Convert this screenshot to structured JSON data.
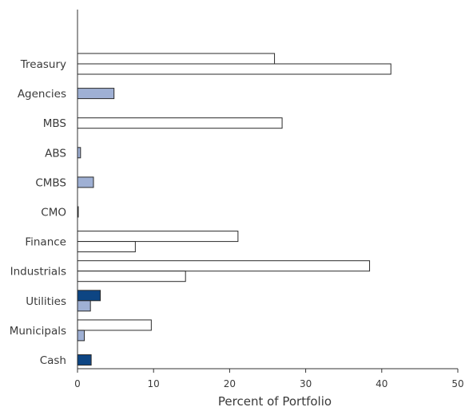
{
  "chart_data": {
    "type": "bar",
    "orientation": "horizontal",
    "categories": [
      "Treasury",
      "Agencies",
      "MBS",
      "ABS",
      "CMBS",
      "CMO",
      "Finance",
      "Industrials",
      "Utilities",
      "Municipals",
      "Cash"
    ],
    "bars": [
      {
        "category": "Treasury",
        "style": "outline",
        "value": 25.9
      },
      {
        "category": "Treasury",
        "style": "outline",
        "value": 41.2
      },
      {
        "category": "Agencies",
        "style": "light",
        "value": 4.8
      },
      {
        "category": "MBS",
        "style": "outline",
        "value": 26.9
      },
      {
        "category": "ABS",
        "style": "light",
        "value": 0.4
      },
      {
        "category": "CMBS",
        "style": "light",
        "value": 2.1
      },
      {
        "category": "CMO",
        "style": "light",
        "value": 0.1
      },
      {
        "category": "Finance",
        "style": "outline",
        "value": 21.1
      },
      {
        "category": "Finance",
        "style": "outline",
        "value": 7.6
      },
      {
        "category": "Industrials",
        "style": "outline",
        "value": 38.4
      },
      {
        "category": "Industrials",
        "style": "outline",
        "value": 14.2
      },
      {
        "category": "Utilities",
        "style": "dark",
        "value": 3.0
      },
      {
        "category": "Utilities",
        "style": "light",
        "value": 1.7
      },
      {
        "category": "Municipals",
        "style": "outline",
        "value": 9.7
      },
      {
        "category": "Municipals",
        "style": "light",
        "value": 0.9
      },
      {
        "category": "Cash",
        "style": "dark",
        "value": 1.8
      }
    ],
    "xlabel": "Percent of Portfolio",
    "xlim": [
      0,
      50
    ],
    "xticks": [
      "0",
      "10",
      "20",
      "30",
      "40",
      "50"
    ],
    "grid": false,
    "colors": {
      "outline": "#ffffff",
      "light": "#9fb0d4",
      "dark": "#0d4583",
      "stroke": "#2a2a2a",
      "axis": "#333333"
    }
  }
}
